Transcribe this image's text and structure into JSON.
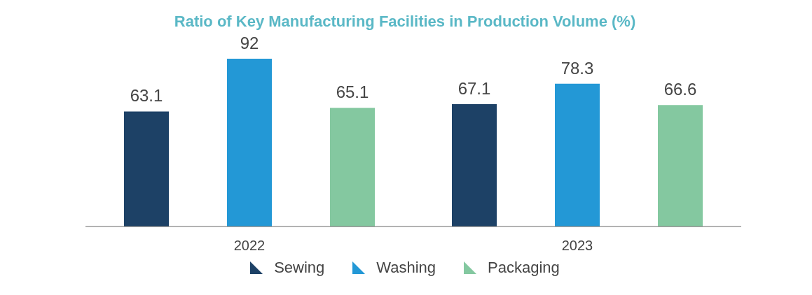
{
  "chart_data": {
    "type": "bar",
    "title": "Ratio of Key Manufacturing Facilities in Production Volume (%)",
    "categories": [
      "2022",
      "2023"
    ],
    "series": [
      {
        "name": "Sewing",
        "color": "#1d4166",
        "values": [
          63.1,
          67.1
        ]
      },
      {
        "name": "Washing",
        "color": "#2398d6",
        "values": [
          92,
          78.3
        ]
      },
      {
        "name": "Packaging",
        "color": "#84c8a0",
        "values": [
          65.1,
          66.6
        ]
      }
    ],
    "data_labels": true,
    "legend": "bottom",
    "tick_labels": "x",
    "grid": false
  }
}
